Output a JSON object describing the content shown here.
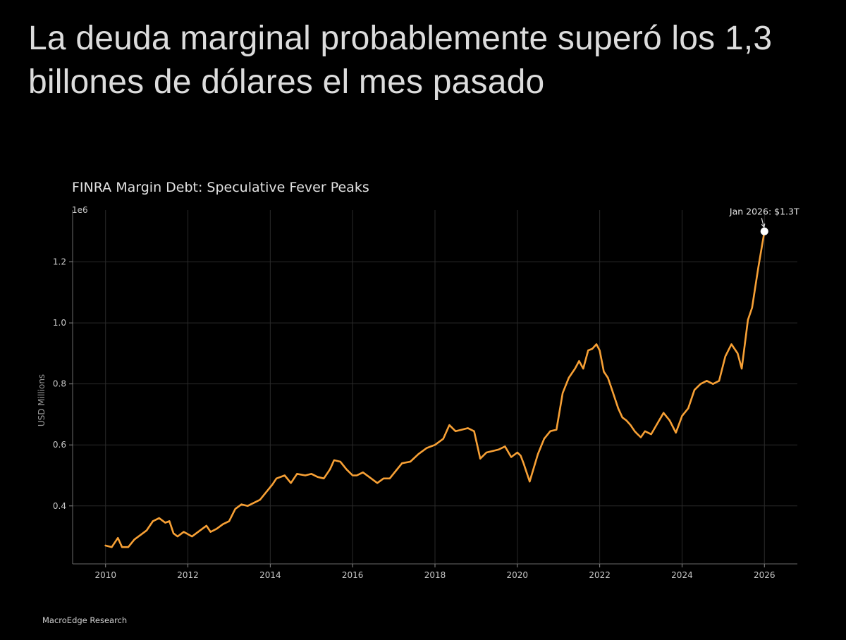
{
  "headline": "La deuda marginal probablemente superó los 1,3 billones de dólares el mes pasado",
  "source_credit": "MacroEdge Research",
  "colors": {
    "background": "#000000",
    "line": "#f7a035",
    "grid": "#2a2a2a",
    "marker": "#ffffff"
  },
  "chart_data": {
    "type": "line",
    "title": "FINRA Margin Debt: Speculative Fever Peaks",
    "ylabel": "USD Millions",
    "xlabel": "",
    "y_scale_label": "1e6",
    "xlim": [
      2009.2,
      2026.8
    ],
    "ylim": [
      0.21,
      1.37
    ],
    "grid": true,
    "x_ticks": [
      2010,
      2012,
      2014,
      2016,
      2018,
      2020,
      2022,
      2024,
      2026
    ],
    "x_tick_labels": [
      "2010",
      "2012",
      "2014",
      "2016",
      "2018",
      "2020",
      "2022",
      "2024",
      "2026"
    ],
    "y_ticks": [
      0.4,
      0.6,
      0.8,
      1.0,
      1.2
    ],
    "y_tick_labels": [
      "0.4",
      "0.6",
      "0.8",
      "1.0",
      "1.2"
    ],
    "series": [
      {
        "x": [
          2010.0,
          2010.15,
          2010.3,
          2010.4,
          2010.55,
          2010.7,
          2010.85,
          2011.0,
          2011.15,
          2011.3,
          2011.45,
          2011.55,
          2011.65,
          2011.75,
          2011.9,
          2012.1,
          2012.25,
          2012.45,
          2012.55,
          2012.7,
          2012.85,
          2013.0,
          2013.15,
          2013.3,
          2013.45,
          2013.6,
          2013.75,
          2013.9,
          2014.05,
          2014.15,
          2014.35,
          2014.5,
          2014.65,
          2014.85,
          2015.0,
          2015.15,
          2015.3,
          2015.45,
          2015.55,
          2015.7,
          2015.85,
          2016.0,
          2016.1,
          2016.25,
          2016.45,
          2016.6,
          2016.75,
          2016.9,
          2017.05,
          2017.2,
          2017.4,
          2017.6,
          2017.8,
          2018.0,
          2018.2,
          2018.35,
          2018.5,
          2018.65,
          2018.8,
          2018.95,
          2019.1,
          2019.25,
          2019.4,
          2019.55,
          2019.7,
          2019.85,
          2020.0,
          2020.08,
          2020.15,
          2020.3,
          2020.5,
          2020.65,
          2020.8,
          2020.95,
          2021.1,
          2021.25,
          2021.4,
          2021.5,
          2021.6,
          2021.72,
          2021.82,
          2021.92,
          2022.0,
          2022.1,
          2022.2,
          2022.3,
          2022.45,
          2022.55,
          2022.65,
          2022.75,
          2022.85,
          2022.92,
          2023.0,
          2023.1,
          2023.25,
          2023.4,
          2023.55,
          2023.7,
          2023.85,
          2024.0,
          2024.15,
          2024.3,
          2024.45,
          2024.6,
          2024.75,
          2024.9,
          2025.05,
          2025.2,
          2025.35,
          2025.45,
          2025.6,
          2025.7,
          2025.85,
          2026.0
        ],
        "y": [
          0.27,
          0.265,
          0.295,
          0.265,
          0.265,
          0.29,
          0.305,
          0.32,
          0.35,
          0.36,
          0.345,
          0.35,
          0.31,
          0.3,
          0.315,
          0.3,
          0.315,
          0.335,
          0.315,
          0.325,
          0.34,
          0.35,
          0.39,
          0.405,
          0.4,
          0.41,
          0.42,
          0.445,
          0.47,
          0.49,
          0.5,
          0.475,
          0.505,
          0.5,
          0.505,
          0.495,
          0.49,
          0.52,
          0.55,
          0.545,
          0.52,
          0.5,
          0.5,
          0.51,
          0.49,
          0.475,
          0.49,
          0.49,
          0.515,
          0.54,
          0.545,
          0.57,
          0.59,
          0.6,
          0.62,
          0.665,
          0.645,
          0.65,
          0.655,
          0.645,
          0.555,
          0.575,
          0.58,
          0.585,
          0.595,
          0.56,
          0.575,
          0.565,
          0.54,
          0.48,
          0.57,
          0.62,
          0.645,
          0.65,
          0.77,
          0.82,
          0.85,
          0.875,
          0.85,
          0.91,
          0.915,
          0.93,
          0.91,
          0.84,
          0.82,
          0.78,
          0.72,
          0.69,
          0.68,
          0.665,
          0.645,
          0.635,
          0.625,
          0.645,
          0.635,
          0.67,
          0.705,
          0.68,
          0.64,
          0.695,
          0.72,
          0.78,
          0.8,
          0.81,
          0.8,
          0.81,
          0.89,
          0.93,
          0.9,
          0.85,
          1.01,
          1.05,
          1.18,
          1.3
        ]
      }
    ],
    "annotations": [
      {
        "x": 2026.0,
        "y": 1.3,
        "text": "Jan 2026: $1.3T"
      }
    ]
  }
}
